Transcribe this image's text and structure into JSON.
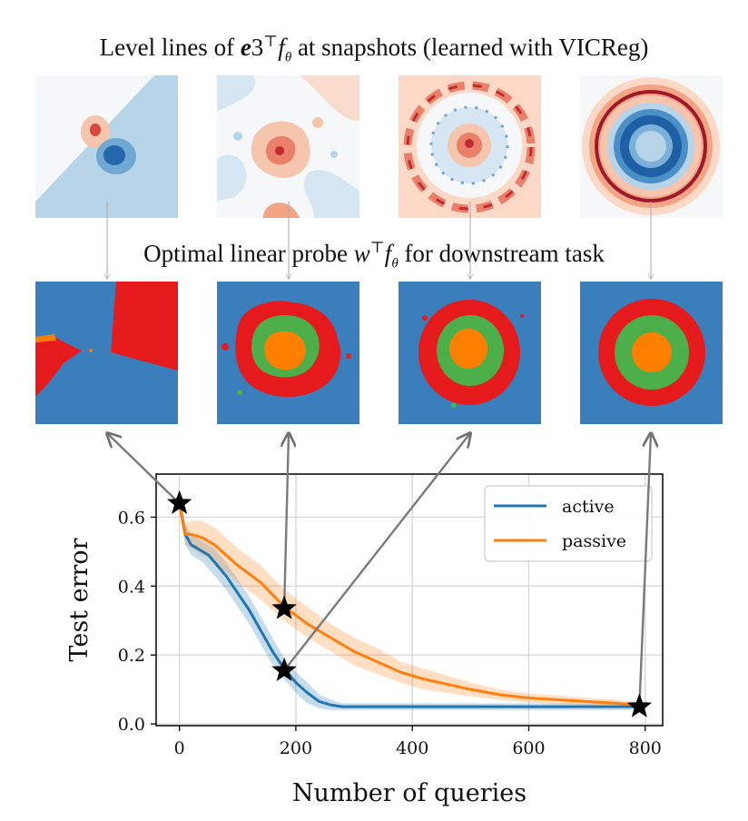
{
  "titles": {
    "top_prefix": "Level lines of ",
    "top_e": "e",
    "top_3": "3",
    "top_T": "⊤",
    "top_f": "f",
    "top_theta": "θ",
    "top_suffix": " at snapshots (learned with VICReg)",
    "probe_prefix": "Optimal linear probe ",
    "probe_w": "w",
    "probe_T": "⊤",
    "probe_f": "f",
    "probe_theta": "θ",
    "probe_suffix": " for downstream task"
  },
  "colors": {
    "active": "#1f77b4",
    "passive": "#ff7f0e",
    "class_blue": "#3a7ebb",
    "class_red": "#e41a1c",
    "class_green": "#4daf4a",
    "class_orange": "#ff7f00"
  },
  "chart_data": {
    "type": "line",
    "xlabel": "Number of queries",
    "ylabel": "Test error",
    "xlim": [
      -40,
      830
    ],
    "ylim": [
      -0.005,
      0.725
    ],
    "xticks": [
      0,
      200,
      400,
      600,
      800
    ],
    "yticks": [
      0.0,
      0.2,
      0.4,
      0.6
    ],
    "xtick_labels": [
      "0",
      "200",
      "400",
      "600",
      "800"
    ],
    "ytick_labels": [
      "0.0",
      "0.2",
      "0.4",
      "0.6"
    ],
    "grid": true,
    "legend": "top-right",
    "series": [
      {
        "name": "active",
        "x": [
          0,
          10,
          20,
          30,
          40,
          50,
          60,
          80,
          100,
          120,
          140,
          160,
          180,
          200,
          220,
          240,
          260,
          280,
          300,
          400,
          500,
          600,
          700,
          790
        ],
        "y": [
          0.64,
          0.55,
          0.52,
          0.51,
          0.5,
          0.49,
          0.47,
          0.43,
          0.38,
          0.33,
          0.27,
          0.21,
          0.16,
          0.12,
          0.09,
          0.065,
          0.055,
          0.05,
          0.05,
          0.05,
          0.05,
          0.05,
          0.05,
          0.05
        ],
        "lower": [
          0.62,
          0.52,
          0.49,
          0.48,
          0.47,
          0.45,
          0.43,
          0.39,
          0.34,
          0.29,
          0.23,
          0.17,
          0.13,
          0.09,
          0.06,
          0.045,
          0.04,
          0.04,
          0.04,
          0.04,
          0.04,
          0.04,
          0.04,
          0.04
        ],
        "upper": [
          0.66,
          0.58,
          0.55,
          0.54,
          0.53,
          0.52,
          0.51,
          0.47,
          0.42,
          0.37,
          0.31,
          0.25,
          0.19,
          0.15,
          0.12,
          0.085,
          0.07,
          0.06,
          0.06,
          0.06,
          0.06,
          0.06,
          0.06,
          0.06
        ]
      },
      {
        "name": "passive",
        "x": [
          0,
          10,
          20,
          40,
          60,
          80,
          100,
          140,
          180,
          220,
          260,
          300,
          340,
          380,
          420,
          460,
          500,
          550,
          600,
          650,
          700,
          750,
          790
        ],
        "y": [
          0.64,
          0.55,
          0.55,
          0.54,
          0.52,
          0.49,
          0.46,
          0.41,
          0.34,
          0.29,
          0.25,
          0.21,
          0.18,
          0.15,
          0.13,
          0.115,
          0.1,
          0.085,
          0.075,
          0.07,
          0.065,
          0.06,
          0.055
        ],
        "lower": [
          0.61,
          0.52,
          0.51,
          0.49,
          0.47,
          0.44,
          0.41,
          0.36,
          0.3,
          0.25,
          0.21,
          0.17,
          0.145,
          0.12,
          0.1,
          0.09,
          0.08,
          0.07,
          0.062,
          0.058,
          0.054,
          0.05,
          0.047
        ],
        "upper": [
          0.67,
          0.58,
          0.59,
          0.59,
          0.57,
          0.54,
          0.51,
          0.46,
          0.39,
          0.34,
          0.29,
          0.25,
          0.22,
          0.18,
          0.16,
          0.14,
          0.12,
          0.1,
          0.088,
          0.082,
          0.076,
          0.07,
          0.063
        ]
      }
    ],
    "stars": [
      {
        "x": 0,
        "y": 0.64,
        "panel": 0
      },
      {
        "x": 180,
        "y": 0.335,
        "panel": 1
      },
      {
        "x": 180,
        "y": 0.155,
        "panel": 2
      },
      {
        "x": 790,
        "y": 0.05,
        "panel": 3
      }
    ]
  }
}
